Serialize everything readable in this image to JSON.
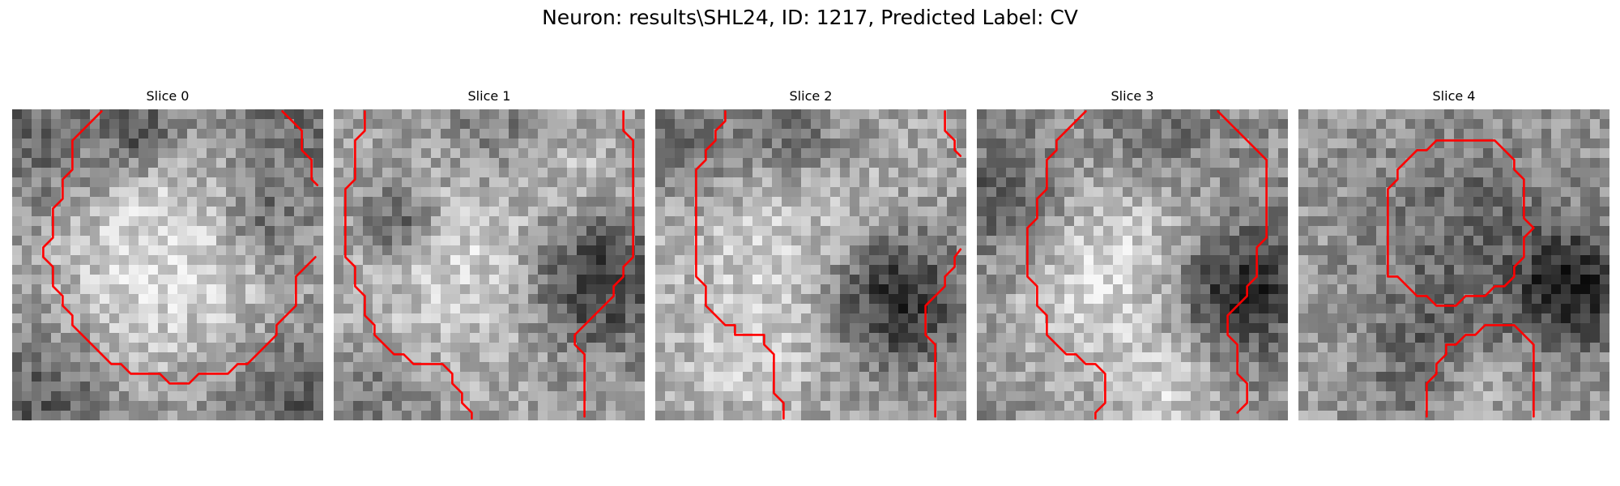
{
  "figure": {
    "title": "Neuron: results\\SHL24, ID: 1217, Predicted Label: CV"
  },
  "panels": [
    {
      "title": "Slice 0"
    },
    {
      "title": "Slice 1"
    },
    {
      "title": "Slice 2"
    },
    {
      "title": "Slice 3"
    },
    {
      "title": "Slice 4"
    }
  ],
  "colors": {
    "contour": "#ff0000",
    "background": "#ffffff"
  }
}
